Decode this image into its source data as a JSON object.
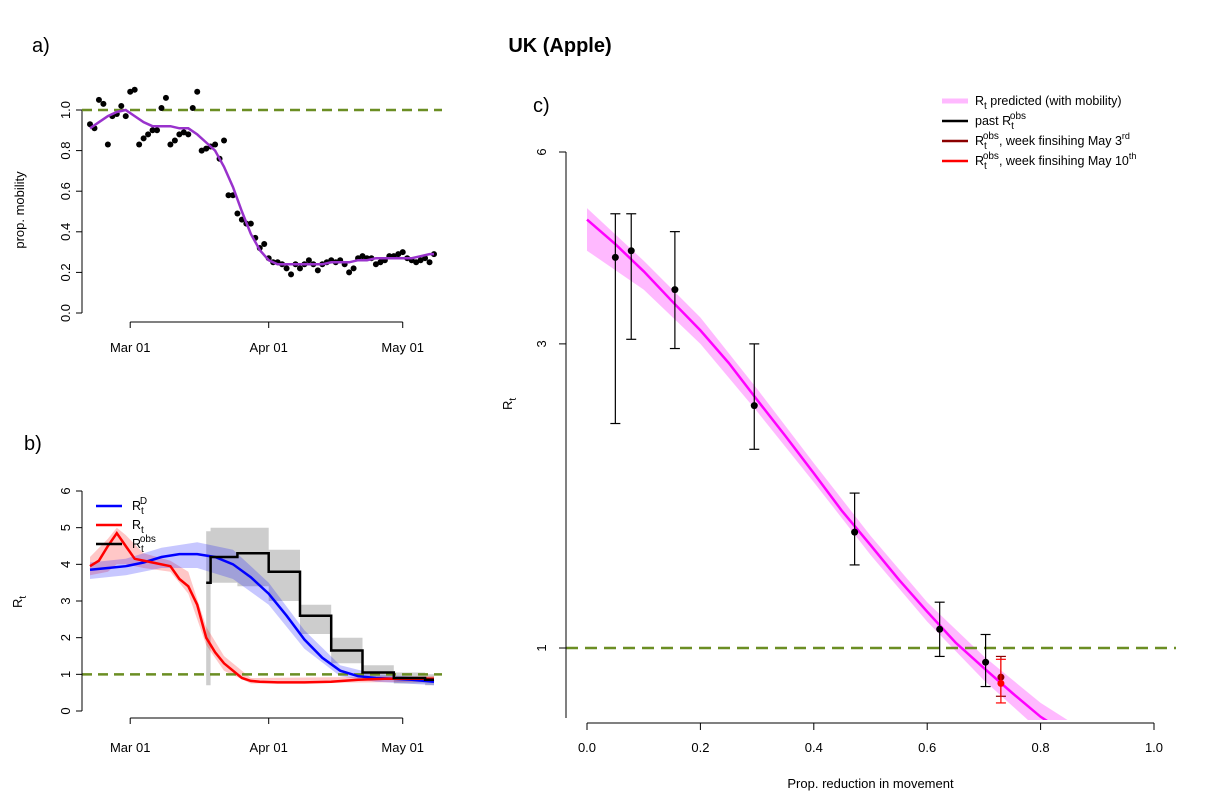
{
  "title": "UK (Apple)",
  "colors": {
    "threshold": "#6b8e23",
    "mobility": "#9932cc",
    "rd": "#0000ff",
    "rt": "#ff0000",
    "obs": "#000000",
    "predicted": "#ff00ff",
    "predicted_band": "#ff80ff",
    "may3": "#8b0000",
    "may10": "#ff0000",
    "grey_band": "#c8c8c8"
  },
  "chart_data": [
    {
      "id": "a",
      "panel_label": "a)",
      "type": "scatter",
      "ylabel": "prop. mobility",
      "xlabel": "",
      "x_ticks": [
        "Mar 01",
        "Apr 01",
        "May 01"
      ],
      "x_tick_days": [
        29,
        60,
        90
      ],
      "x_range_days": [
        20,
        97
      ],
      "y_ticks": [
        "0.0",
        "0.2",
        "0.4",
        "0.6",
        "0.8",
        "1.0"
      ],
      "ylim": [
        0,
        1.1
      ],
      "threshold": 1.0,
      "points_day_value": [
        [
          20,
          0.93
        ],
        [
          21,
          0.91
        ],
        [
          22,
          1.05
        ],
        [
          23,
          1.03
        ],
        [
          24,
          0.83
        ],
        [
          25,
          0.97
        ],
        [
          26,
          0.98
        ],
        [
          27,
          1.02
        ],
        [
          28,
          0.97
        ],
        [
          29,
          1.09
        ],
        [
          30,
          1.1
        ],
        [
          31,
          0.83
        ],
        [
          32,
          0.86
        ],
        [
          33,
          0.88
        ],
        [
          34,
          0.9
        ],
        [
          35,
          0.9
        ],
        [
          36,
          1.01
        ],
        [
          37,
          1.06
        ],
        [
          38,
          0.83
        ],
        [
          39,
          0.85
        ],
        [
          40,
          0.88
        ],
        [
          41,
          0.89
        ],
        [
          42,
          0.88
        ],
        [
          43,
          1.01
        ],
        [
          44,
          1.09
        ],
        [
          45,
          0.8
        ],
        [
          46,
          0.81
        ],
        [
          47,
          0.82
        ],
        [
          48,
          0.83
        ],
        [
          49,
          0.76
        ],
        [
          50,
          0.85
        ],
        [
          51,
          0.58
        ],
        [
          52,
          0.58
        ],
        [
          53,
          0.49
        ],
        [
          54,
          0.46
        ],
        [
          55,
          0.44
        ],
        [
          56,
          0.44
        ],
        [
          57,
          0.37
        ],
        [
          58,
          0.32
        ],
        [
          59,
          0.34
        ],
        [
          60,
          0.27
        ],
        [
          61,
          0.25
        ],
        [
          62,
          0.25
        ],
        [
          63,
          0.24
        ],
        [
          64,
          0.22
        ],
        [
          65,
          0.19
        ],
        [
          66,
          0.24
        ],
        [
          67,
          0.22
        ],
        [
          68,
          0.24
        ],
        [
          69,
          0.26
        ],
        [
          70,
          0.24
        ],
        [
          71,
          0.21
        ],
        [
          72,
          0.24
        ],
        [
          73,
          0.25
        ],
        [
          74,
          0.26
        ],
        [
          75,
          0.25
        ],
        [
          76,
          0.26
        ],
        [
          77,
          0.24
        ],
        [
          78,
          0.2
        ],
        [
          79,
          0.22
        ],
        [
          80,
          0.27
        ],
        [
          81,
          0.28
        ],
        [
          82,
          0.27
        ],
        [
          83,
          0.27
        ],
        [
          84,
          0.24
        ],
        [
          85,
          0.25
        ],
        [
          86,
          0.26
        ],
        [
          87,
          0.28
        ],
        [
          88,
          0.28
        ],
        [
          89,
          0.29
        ],
        [
          90,
          0.3
        ],
        [
          91,
          0.27
        ],
        [
          92,
          0.26
        ],
        [
          93,
          0.25
        ],
        [
          94,
          0.26
        ],
        [
          95,
          0.27
        ],
        [
          96,
          0.25
        ],
        [
          97,
          0.29
        ]
      ],
      "smooth_day_value": [
        [
          20,
          0.91
        ],
        [
          22,
          0.94
        ],
        [
          24,
          0.97
        ],
        [
          26,
          0.99
        ],
        [
          28,
          1.0
        ],
        [
          30,
          0.97
        ],
        [
          32,
          0.94
        ],
        [
          34,
          0.92
        ],
        [
          36,
          0.92
        ],
        [
          38,
          0.92
        ],
        [
          40,
          0.91
        ],
        [
          42,
          0.91
        ],
        [
          44,
          0.88
        ],
        [
          46,
          0.84
        ],
        [
          48,
          0.8
        ],
        [
          50,
          0.72
        ],
        [
          52,
          0.62
        ],
        [
          54,
          0.5
        ],
        [
          56,
          0.39
        ],
        [
          58,
          0.31
        ],
        [
          60,
          0.26
        ],
        [
          62,
          0.24
        ],
        [
          64,
          0.24
        ],
        [
          66,
          0.24
        ],
        [
          68,
          0.24
        ],
        [
          70,
          0.24
        ],
        [
          72,
          0.24
        ],
        [
          74,
          0.25
        ],
        [
          76,
          0.25
        ],
        [
          78,
          0.25
        ],
        [
          80,
          0.26
        ],
        [
          82,
          0.26
        ],
        [
          84,
          0.27
        ],
        [
          86,
          0.27
        ],
        [
          88,
          0.27
        ],
        [
          90,
          0.27
        ],
        [
          92,
          0.27
        ],
        [
          94,
          0.28
        ],
        [
          96,
          0.29
        ],
        [
          97,
          0.29
        ]
      ]
    },
    {
      "id": "b",
      "panel_label": "b)",
      "type": "line",
      "ylabel": "R",
      "ylabel_sub": "t",
      "xlabel": "",
      "x_ticks": [
        "Mar 01",
        "Apr 01",
        "May 01"
      ],
      "x_tick_days": [
        29,
        60,
        90
      ],
      "x_range_days": [
        20,
        97
      ],
      "y_ticks": [
        "0",
        "1",
        "2",
        "3",
        "4",
        "5",
        "6"
      ],
      "ylim": [
        0,
        6
      ],
      "threshold": 1.0,
      "legend": [
        {
          "label": "R",
          "sub": "t",
          "sup": "D",
          "color_key": "rd"
        },
        {
          "label": "R",
          "sub": "t",
          "sup": "",
          "color_key": "rt"
        },
        {
          "label": "R",
          "sub": "t",
          "sup": "obs",
          "color_key": "obs"
        }
      ],
      "series": [
        {
          "name": "Rt^D",
          "color_key": "rd",
          "day_value": [
            [
              20,
              3.85
            ],
            [
              24,
              3.9
            ],
            [
              28,
              3.95
            ],
            [
              32,
              4.05
            ],
            [
              36,
              4.2
            ],
            [
              40,
              4.28
            ],
            [
              44,
              4.28
            ],
            [
              48,
              4.2
            ],
            [
              52,
              4.0
            ],
            [
              56,
              3.65
            ],
            [
              60,
              3.2
            ],
            [
              64,
              2.6
            ],
            [
              68,
              1.95
            ],
            [
              72,
              1.45
            ],
            [
              76,
              1.1
            ],
            [
              80,
              0.95
            ],
            [
              84,
              0.9
            ],
            [
              88,
              0.88
            ],
            [
              92,
              0.85
            ],
            [
              97,
              0.8
            ]
          ]
        },
        {
          "name": "Rt",
          "color_key": "rt",
          "day_value": [
            [
              20,
              3.95
            ],
            [
              22,
              4.1
            ],
            [
              24,
              4.5
            ],
            [
              26,
              4.85
            ],
            [
              28,
              4.5
            ],
            [
              30,
              4.15
            ],
            [
              34,
              4.05
            ],
            [
              38,
              3.95
            ],
            [
              40,
              3.6
            ],
            [
              42,
              3.4
            ],
            [
              44,
              2.9
            ],
            [
              46,
              2.0
            ],
            [
              48,
              1.6
            ],
            [
              50,
              1.3
            ],
            [
              52,
              1.1
            ],
            [
              54,
              0.9
            ],
            [
              56,
              0.82
            ],
            [
              58,
              0.8
            ],
            [
              62,
              0.78
            ],
            [
              68,
              0.78
            ],
            [
              74,
              0.8
            ],
            [
              80,
              0.85
            ],
            [
              86,
              0.88
            ],
            [
              92,
              0.88
            ],
            [
              97,
              0.88
            ]
          ]
        },
        {
          "name": "Rt^obs",
          "color_key": "obs",
          "step_day_value": [
            [
              46,
              3.5
            ],
            [
              47,
              4.2
            ],
            [
              53,
              4.3
            ],
            [
              60,
              3.8
            ],
            [
              67,
              2.6
            ],
            [
              74,
              1.65
            ],
            [
              81,
              1.05
            ],
            [
              88,
              0.9
            ],
            [
              95,
              0.85
            ],
            [
              97,
              0.85
            ]
          ]
        }
      ],
      "rd_band_day_lo_hi": [
        [
          20,
          3.6,
          4.05
        ],
        [
          28,
          3.7,
          4.15
        ],
        [
          36,
          3.9,
          4.45
        ],
        [
          44,
          3.9,
          4.6
        ],
        [
          52,
          3.6,
          4.4
        ],
        [
          60,
          2.9,
          3.5
        ],
        [
          68,
          1.7,
          2.2
        ],
        [
          76,
          0.95,
          1.25
        ],
        [
          84,
          0.8,
          1.0
        ],
        [
          97,
          0.7,
          0.9
        ]
      ],
      "rt_band_day_lo_hi": [
        [
          20,
          3.7,
          4.2
        ],
        [
          24,
          3.8,
          4.7
        ],
        [
          26,
          4.0,
          5.0
        ],
        [
          28,
          4.0,
          4.8
        ],
        [
          32,
          3.9,
          4.3
        ],
        [
          38,
          3.8,
          4.1
        ],
        [
          42,
          3.2,
          3.8
        ],
        [
          46,
          1.8,
          2.3
        ],
        [
          50,
          1.1,
          1.5
        ],
        [
          56,
          0.75,
          0.9
        ],
        [
          97,
          0.8,
          0.95
        ]
      ],
      "obs_band_step_day_lo_hi": [
        [
          46,
          0.7,
          4.9
        ],
        [
          47,
          3.5,
          5.0
        ],
        [
          53,
          3.4,
          5.0
        ],
        [
          60,
          3.0,
          4.4
        ],
        [
          67,
          2.1,
          2.9
        ],
        [
          74,
          1.3,
          2.0
        ],
        [
          81,
          0.85,
          1.25
        ],
        [
          88,
          0.75,
          1.05
        ],
        [
          95,
          0.7,
          1.0
        ],
        [
          97,
          0.7,
          1.0
        ]
      ]
    },
    {
      "id": "c",
      "panel_label": "c)",
      "type": "scatter",
      "xlabel": "Prop. reduction in movement",
      "ylabel": "R",
      "ylabel_sub": "t",
      "scale_y": "log",
      "x_ticks": [
        "0.0",
        "0.2",
        "0.4",
        "0.6",
        "0.8",
        "1.0"
      ],
      "x_tick_values": [
        0,
        0.2,
        0.4,
        0.6,
        0.8,
        1.0
      ],
      "xlim": [
        0,
        1.0
      ],
      "y_ticks": [
        "1",
        "3",
        "6"
      ],
      "y_tick_values": [
        1,
        3,
        6
      ],
      "ylim": [
        0.6,
        6.0
      ],
      "threshold": 1.0,
      "legend": [
        {
          "label": "R",
          "sub": "t",
          "sup": "",
          "suffix": " predicted (with mobility)",
          "color_key": "predicted_band"
        },
        {
          "label": "past R",
          "sub": "t",
          "sup": "obs",
          "suffix": "",
          "color_key": "obs"
        },
        {
          "label": "R",
          "sub": "t",
          "sup": "obs",
          "suffix": ", week finsihing May 3",
          "sup2": "rd",
          "color_key": "may3"
        },
        {
          "label": "R",
          "sub": "t",
          "sup": "obs",
          "suffix": ", week finsihing May 10",
          "sup2": "th",
          "color_key": "may10"
        }
      ],
      "predicted_curve_x_y": [
        [
          0.0,
          4.7
        ],
        [
          0.05,
          4.3
        ],
        [
          0.1,
          3.9
        ],
        [
          0.15,
          3.5
        ],
        [
          0.2,
          3.15
        ],
        [
          0.25,
          2.8
        ],
        [
          0.3,
          2.45
        ],
        [
          0.35,
          2.15
        ],
        [
          0.4,
          1.88
        ],
        [
          0.45,
          1.64
        ],
        [
          0.5,
          1.45
        ],
        [
          0.55,
          1.28
        ],
        [
          0.6,
          1.14
        ],
        [
          0.65,
          1.02
        ],
        [
          0.7,
          0.93
        ],
        [
          0.75,
          0.85
        ],
        [
          0.8,
          0.78
        ],
        [
          0.85,
          0.73
        ],
        [
          0.9,
          0.68
        ],
        [
          0.95,
          0.64
        ],
        [
          1.0,
          0.61
        ]
      ],
      "predicted_band_x_lo_hi": [
        [
          0.0,
          4.2,
          4.9
        ],
        [
          0.1,
          3.65,
          4.05
        ],
        [
          0.2,
          3.0,
          3.3
        ],
        [
          0.3,
          2.35,
          2.55
        ],
        [
          0.4,
          1.82,
          1.95
        ],
        [
          0.5,
          1.4,
          1.5
        ],
        [
          0.6,
          1.1,
          1.18
        ],
        [
          0.7,
          0.89,
          0.97
        ],
        [
          0.8,
          0.74,
          0.82
        ],
        [
          0.9,
          0.64,
          0.72
        ],
        [
          1.0,
          0.57,
          0.65
        ]
      ],
      "points": [
        {
          "x": 0.05,
          "y": 4.1,
          "lo": 2.25,
          "hi": 4.8,
          "color_key": "obs"
        },
        {
          "x": 0.078,
          "y": 4.2,
          "lo": 3.05,
          "hi": 4.8,
          "color_key": "obs"
        },
        {
          "x": 0.155,
          "y": 3.65,
          "lo": 2.95,
          "hi": 4.5,
          "color_key": "obs"
        },
        {
          "x": 0.295,
          "y": 2.4,
          "lo": 2.05,
          "hi": 3.0,
          "color_key": "obs"
        },
        {
          "x": 0.472,
          "y": 1.52,
          "lo": 1.35,
          "hi": 1.75,
          "color_key": "obs"
        },
        {
          "x": 0.622,
          "y": 1.07,
          "lo": 0.97,
          "hi": 1.18,
          "color_key": "obs"
        },
        {
          "x": 0.703,
          "y": 0.95,
          "lo": 0.87,
          "hi": 1.05,
          "color_key": "obs"
        },
        {
          "x": 0.73,
          "y": 0.9,
          "lo": 0.84,
          "hi": 0.97,
          "color_key": "may3"
        },
        {
          "x": 0.73,
          "y": 0.88,
          "lo": 0.82,
          "hi": 0.96,
          "color_key": "may10"
        }
      ]
    }
  ]
}
